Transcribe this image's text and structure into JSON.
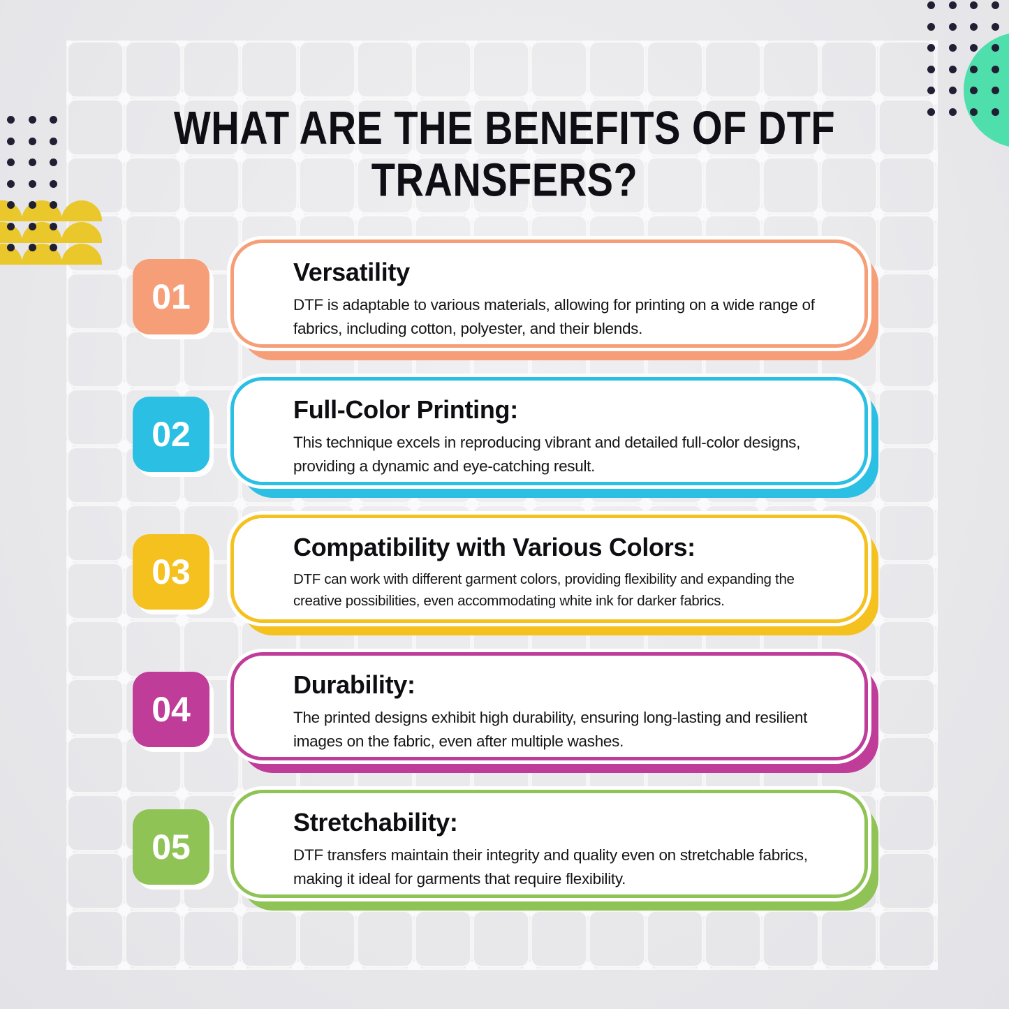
{
  "title": {
    "line1": "WHAT ARE THE BENEFITS OF DTF",
    "line2": "TRANSFERS?"
  },
  "cards": [
    {
      "number": "01",
      "color": "#F69E77",
      "heading": "Versatility",
      "body": "DTF is adaptable to various materials, allowing for printing on a wide range of fabrics, including cotton, polyester, and their blends."
    },
    {
      "number": "02",
      "color": "#2BBFE3",
      "heading": "Full-Color Printing:",
      "body": "This technique excels in reproducing vibrant and detailed full-color designs, providing a dynamic and eye-catching result."
    },
    {
      "number": "03",
      "color": "#F4C11E",
      "heading": "Compatibility with Various Colors:",
      "body": "DTF can work with different garment colors, providing flexibility and expanding the creative possibilities, even accommodating white ink for darker fabrics."
    },
    {
      "number": "04",
      "color": "#BF3C99",
      "heading": "Durability:",
      "body": "The printed designs exhibit high durability, ensuring long-lasting and resilient images on the fabric, even after multiple washes."
    },
    {
      "number": "05",
      "color": "#8FC355",
      "heading": "Stretchability:",
      "body": "DTF transfers maintain their integrity and quality even on stretchable fabrics, making it ideal for garments that require flexibility."
    }
  ],
  "decor": {
    "dot_color": "#201F33",
    "circle_color": "#4FDFAC",
    "dome_color": "#EAC72B"
  }
}
